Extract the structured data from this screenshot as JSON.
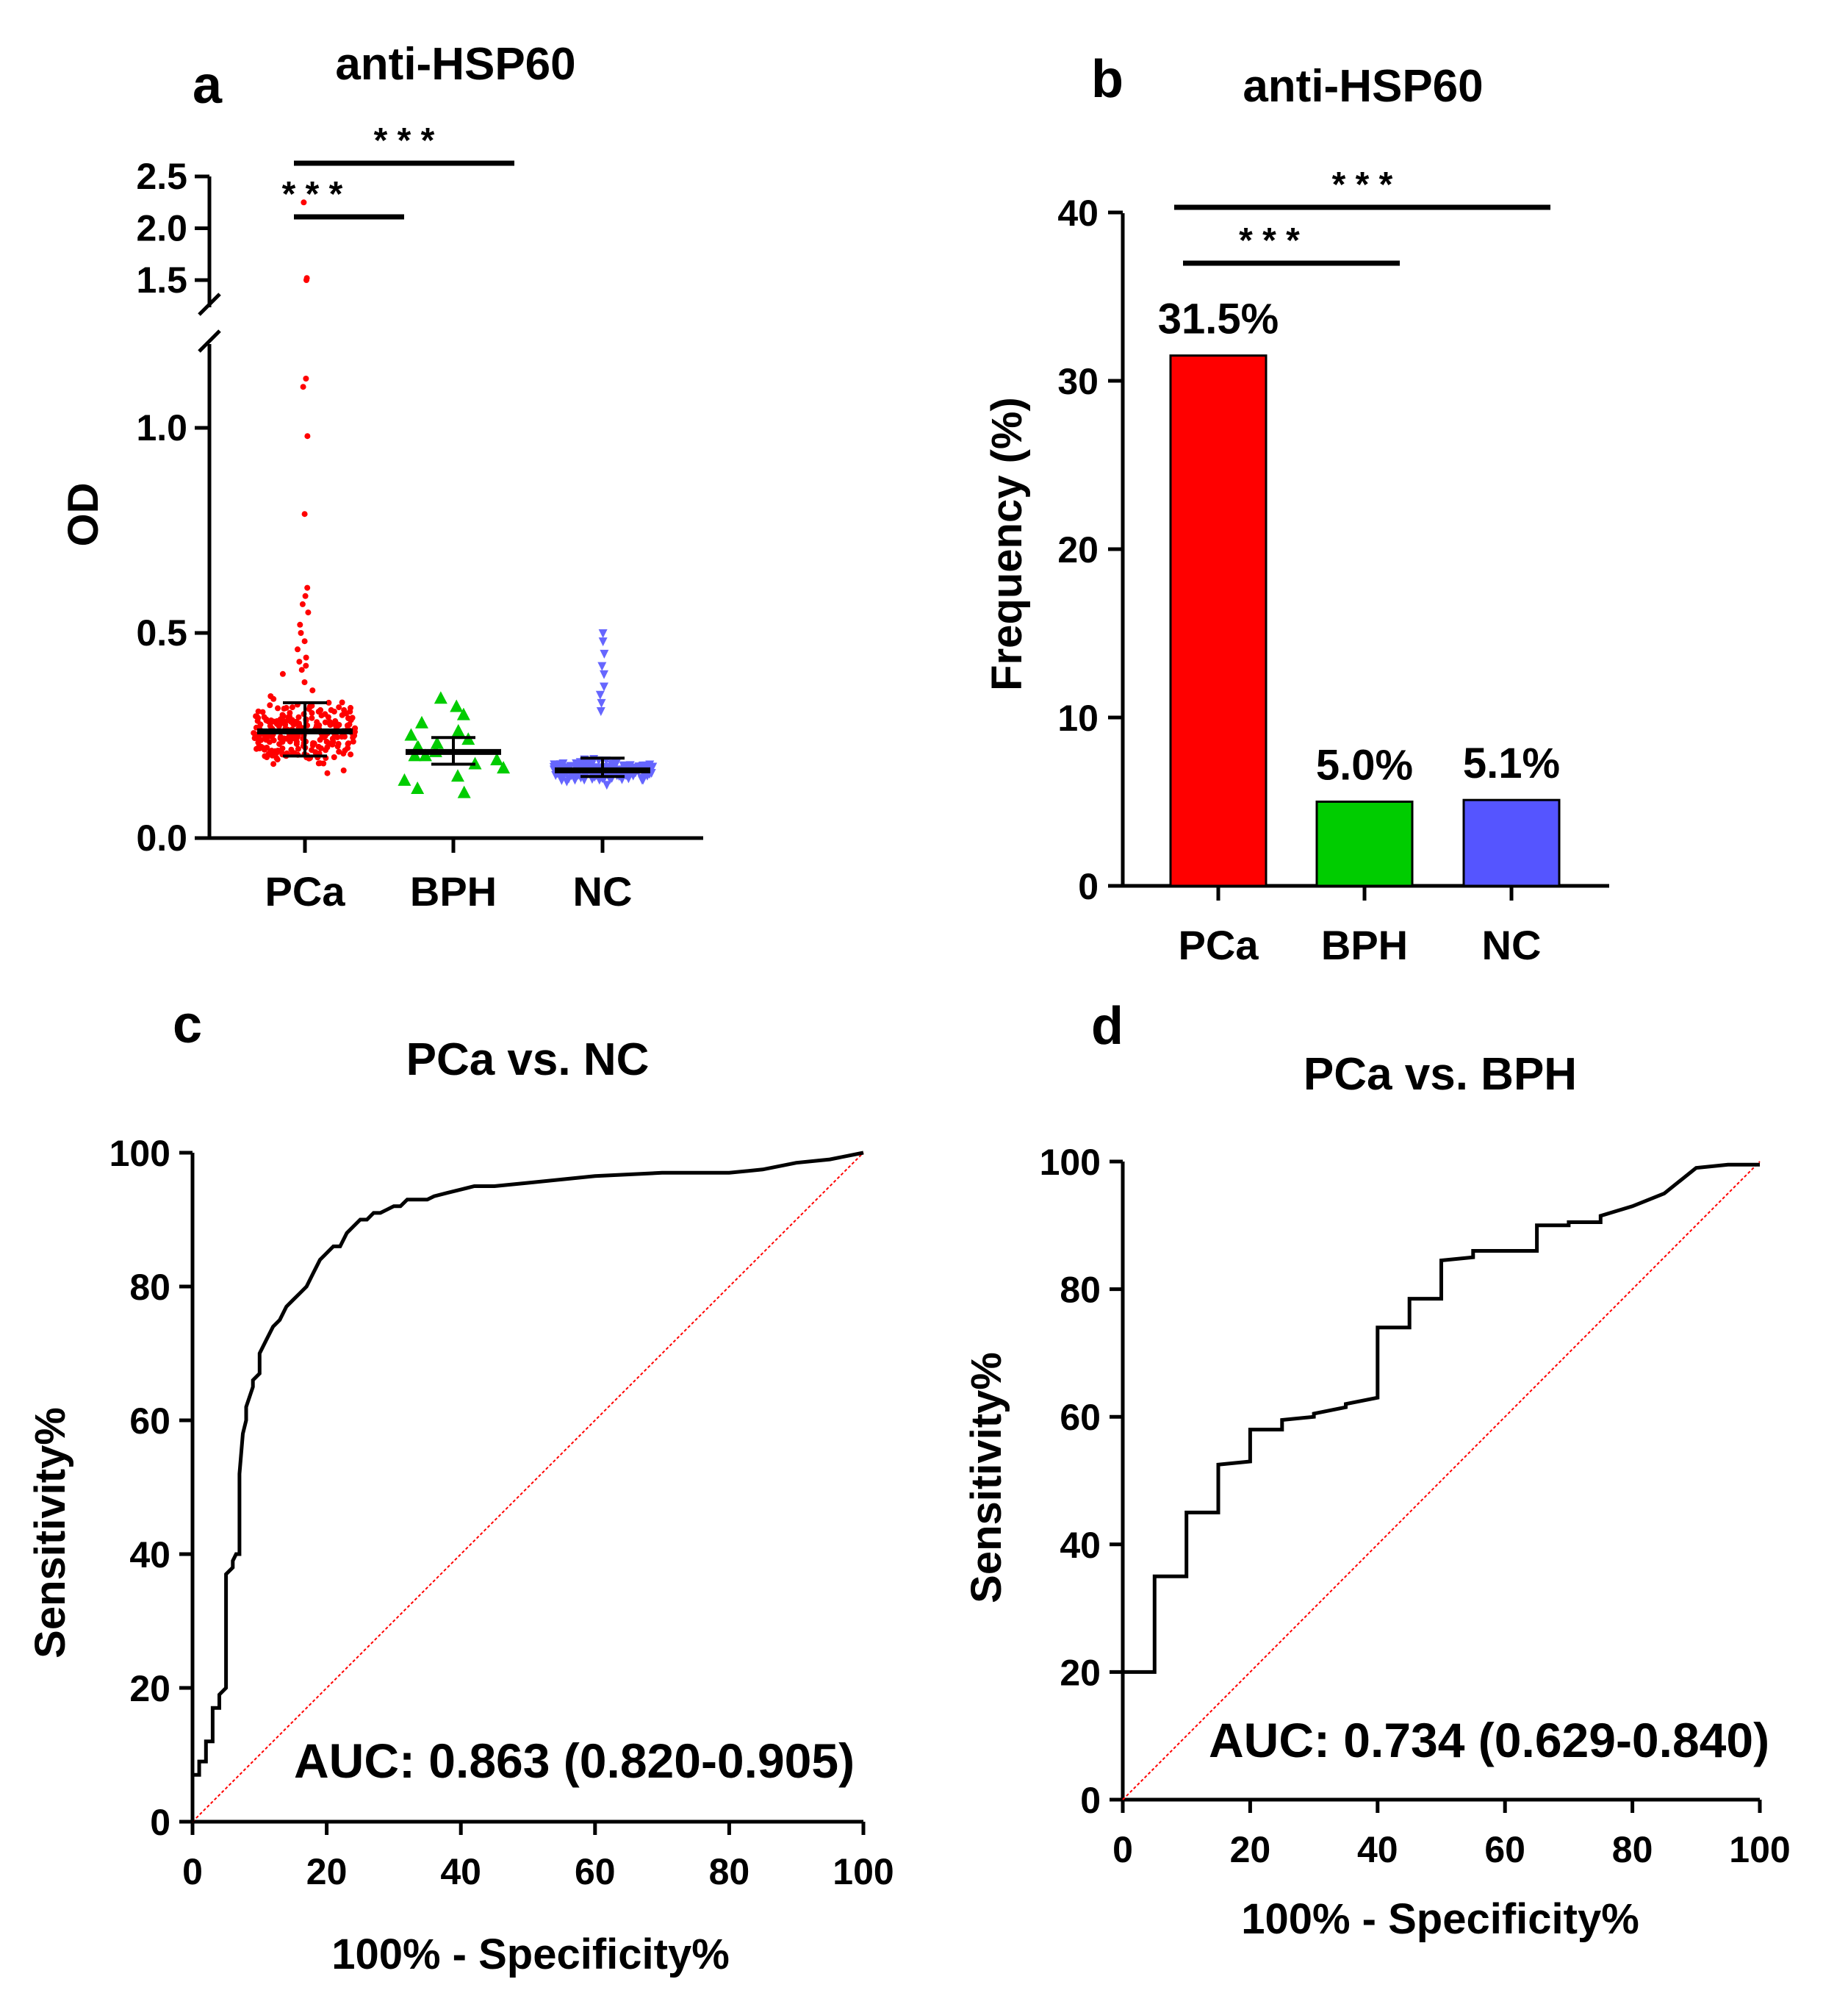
{
  "chart_data": [
    {
      "panel": "a",
      "type": "scatter",
      "title": "anti-HSP60",
      "ylabel": "OD",
      "xlabel": "",
      "categories": [
        "PCa",
        "BPH",
        "NC"
      ],
      "yticks": [
        "0.0",
        "0.5",
        "1.0",
        "1.5",
        "2.0",
        "2.5"
      ],
      "ylim": [
        0,
        2.5
      ],
      "axis_break": [
        1.2,
        1.5
      ],
      "significance": [
        {
          "from": "PCa",
          "to": "BPH",
          "label": "* * *"
        },
        {
          "from": "PCa",
          "to": "NC",
          "label": "* * *"
        }
      ],
      "series": [
        {
          "name": "PCa",
          "color": "#ff0000",
          "marker": "circle",
          "n": 280,
          "median": 0.26,
          "q1": 0.2,
          "q3": 0.33,
          "outliers": [
            0.36,
            0.38,
            0.4,
            0.41,
            0.42,
            0.43,
            0.44,
            0.46,
            0.48,
            0.5,
            0.52,
            0.55,
            0.57,
            0.59,
            0.61,
            0.79,
            0.98,
            1.1,
            1.12,
            1.5,
            1.52,
            2.25
          ]
        },
        {
          "name": "BPH",
          "color": "#00cc00",
          "marker": "triangle-up",
          "n": 20,
          "median": 0.21,
          "q1": 0.18,
          "q3": 0.245,
          "values": [
            0.34,
            0.32,
            0.3,
            0.28,
            0.26,
            0.25,
            0.24,
            0.23,
            0.22,
            0.22,
            0.21,
            0.2,
            0.2,
            0.19,
            0.18,
            0.17,
            0.15,
            0.14,
            0.12,
            0.11
          ]
        },
        {
          "name": "NC",
          "color": "#6666ff",
          "marker": "triangle-down",
          "n": 180,
          "median": 0.165,
          "q1": 0.15,
          "q3": 0.195,
          "outliers": [
            0.5,
            0.48,
            0.45,
            0.42,
            0.4,
            0.37,
            0.35,
            0.33,
            0.31
          ]
        }
      ]
    },
    {
      "panel": "b",
      "type": "bar",
      "title": "anti-HSP60",
      "ylabel": "Frequency (%)",
      "xlabel": "",
      "categories": [
        "PCa",
        "BPH",
        "NC"
      ],
      "values": [
        31.5,
        5.0,
        5.1
      ],
      "value_labels": [
        "31.5%",
        "5.0%",
        "5.1%"
      ],
      "colors": [
        "#ff0000",
        "#00cc00",
        "#5555ff"
      ],
      "ylim": [
        0,
        40
      ],
      "yticks": [
        "0",
        "10",
        "20",
        "30",
        "40"
      ],
      "significance": [
        {
          "from": "PCa",
          "to": "BPH",
          "label": "* * *"
        },
        {
          "from": "PCa",
          "to": "NC",
          "label": "* * *"
        }
      ]
    },
    {
      "panel": "c",
      "type": "line",
      "title": "PCa vs. NC",
      "xlabel": "100% - Specificity%",
      "ylabel": "Sensitivity%",
      "xlim": [
        0,
        100
      ],
      "ylim": [
        0,
        100
      ],
      "xticks": [
        "0",
        "20",
        "40",
        "60",
        "80",
        "100"
      ],
      "yticks": [
        "0",
        "20",
        "40",
        "60",
        "80",
        "100"
      ],
      "annotation": "AUC: 0.863 (0.820-0.905)",
      "reference_line_color": "#ff0000",
      "series": [
        {
          "name": "ROC",
          "color": "#000000",
          "x": [
            0,
            0,
            1,
            1,
            2,
            2,
            3,
            3,
            4,
            4,
            5,
            5,
            6,
            6,
            6.5,
            7,
            7,
            7.5,
            8,
            8,
            9,
            9,
            10,
            10,
            11,
            12,
            13,
            14,
            15,
            16,
            17,
            18,
            19,
            20,
            21,
            22,
            23,
            24,
            25,
            26,
            27,
            28,
            29,
            30,
            31,
            32,
            33,
            34,
            35,
            36,
            38,
            40,
            42,
            45,
            50,
            55,
            60,
            70,
            80,
            85,
            90,
            95,
            100
          ],
          "y": [
            0,
            7,
            7,
            9,
            9,
            12,
            12,
            17,
            17,
            19,
            20,
            37,
            38,
            39,
            40,
            40,
            52,
            58,
            60,
            62,
            65,
            66,
            67,
            70,
            72,
            74,
            75,
            77,
            78,
            79,
            80,
            82,
            84,
            85,
            86,
            86,
            88,
            89,
            90,
            90,
            91,
            91,
            91.5,
            92,
            92,
            93,
            93,
            93,
            93,
            93.5,
            94,
            94.5,
            95,
            95,
            95.5,
            96,
            96.5,
            97,
            97,
            97.5,
            98.5,
            99,
            100
          ]
        }
      ]
    },
    {
      "panel": "d",
      "type": "line",
      "title": "PCa vs. BPH",
      "xlabel": "100% - Specificity%",
      "ylabel": "Sensitivity%",
      "xlim": [
        0,
        100
      ],
      "ylim": [
        0,
        100
      ],
      "xticks": [
        "0",
        "20",
        "40",
        "60",
        "80",
        "100"
      ],
      "yticks": [
        "0",
        "20",
        "40",
        "60",
        "80",
        "100"
      ],
      "annotation": "AUC: 0.734 (0.629-0.840)",
      "reference_line_color": "#ff0000",
      "series": [
        {
          "name": "ROC",
          "color": "#000000",
          "x": [
            0,
            5,
            5,
            10,
            10,
            15,
            15,
            20,
            20,
            25,
            25,
            30,
            30,
            35,
            35,
            40,
            40,
            45,
            45,
            50,
            50,
            55,
            55,
            60,
            60,
            65,
            65,
            70,
            70,
            75,
            75,
            80,
            80,
            85,
            85,
            90,
            90,
            95,
            95,
            100
          ],
          "y": [
            20,
            20,
            35,
            35,
            45,
            45,
            52.5,
            53,
            58,
            58,
            59.5,
            60,
            60.5,
            61.5,
            62,
            63,
            74,
            74,
            78.5,
            78.5,
            84.5,
            85,
            86,
            86,
            86,
            86,
            90,
            90,
            90.5,
            90.5,
            91.5,
            93,
            93,
            95,
            95,
            99,
            99,
            99.5,
            99.5,
            99.5
          ]
        }
      ]
    }
  ]
}
